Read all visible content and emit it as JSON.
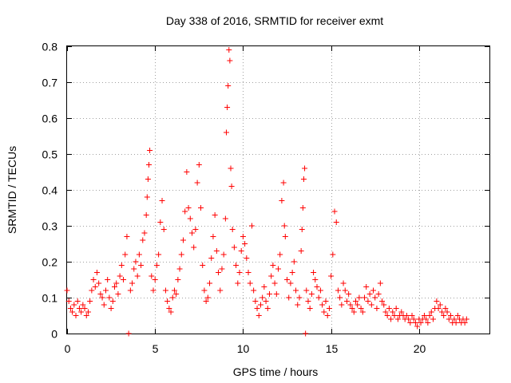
{
  "chart_data": {
    "type": "scatter",
    "title": "Day 338 of 2016, SRMTID for receiver exmt",
    "xlabel": "GPS time / hours",
    "ylabel": "SRMTID / TECUs",
    "xlim": [
      0,
      24
    ],
    "ylim": [
      0,
      0.8
    ],
    "xticks": [
      0,
      5,
      10,
      15,
      20
    ],
    "xtick_labels": [
      "0",
      "5",
      "10",
      "15",
      "20"
    ],
    "yticks": [
      0,
      0.1,
      0.2,
      0.3,
      0.4,
      0.5,
      0.6,
      0.7,
      0.8
    ],
    "ytick_labels": [
      "0",
      "0.1",
      "0.2",
      "0.3",
      "0.4",
      "0.5",
      "0.6",
      "0.7",
      "0.8"
    ],
    "grid": true,
    "marker": "+",
    "color": "#ff0000",
    "series": [
      {
        "name": "SRMTID",
        "points": [
          [
            0.0,
            0.12
          ],
          [
            0.1,
            0.09
          ],
          [
            0.2,
            0.07
          ],
          [
            0.3,
            0.06
          ],
          [
            0.4,
            0.08
          ],
          [
            0.5,
            0.05
          ],
          [
            0.6,
            0.09
          ],
          [
            0.7,
            0.07
          ],
          [
            0.8,
            0.06
          ],
          [
            0.9,
            0.08
          ],
          [
            1.0,
            0.07
          ],
          [
            1.1,
            0.05
          ],
          [
            1.2,
            0.06
          ],
          [
            1.3,
            0.09
          ],
          [
            1.4,
            0.12
          ],
          [
            1.5,
            0.15
          ],
          [
            1.6,
            0.13
          ],
          [
            1.7,
            0.17
          ],
          [
            1.8,
            0.14
          ],
          [
            1.9,
            0.11
          ],
          [
            2.0,
            0.1
          ],
          [
            2.1,
            0.08
          ],
          [
            2.2,
            0.12
          ],
          [
            2.3,
            0.15
          ],
          [
            2.4,
            0.1
          ],
          [
            2.5,
            0.07
          ],
          [
            2.6,
            0.09
          ],
          [
            2.7,
            0.13
          ],
          [
            2.8,
            0.14
          ],
          [
            2.9,
            0.11
          ],
          [
            3.0,
            0.16
          ],
          [
            3.1,
            0.19
          ],
          [
            3.2,
            0.15
          ],
          [
            3.3,
            0.22
          ],
          [
            3.4,
            0.27
          ],
          [
            3.5,
            0.0
          ],
          [
            3.6,
            0.12
          ],
          [
            3.7,
            0.14
          ],
          [
            3.8,
            0.18
          ],
          [
            3.9,
            0.2
          ],
          [
            4.0,
            0.16
          ],
          [
            4.1,
            0.22
          ],
          [
            4.2,
            0.19
          ],
          [
            4.3,
            0.26
          ],
          [
            4.4,
            0.28
          ],
          [
            4.5,
            0.33
          ],
          [
            4.55,
            0.38
          ],
          [
            4.6,
            0.43
          ],
          [
            4.65,
            0.47
          ],
          [
            4.7,
            0.51
          ],
          [
            4.8,
            0.16
          ],
          [
            4.9,
            0.12
          ],
          [
            5.0,
            0.15
          ],
          [
            5.1,
            0.19
          ],
          [
            5.2,
            0.22
          ],
          [
            5.3,
            0.31
          ],
          [
            5.4,
            0.37
          ],
          [
            5.5,
            0.29
          ],
          [
            5.6,
            0.12
          ],
          [
            5.7,
            0.09
          ],
          [
            5.8,
            0.07
          ],
          [
            5.9,
            0.06
          ],
          [
            6.0,
            0.1
          ],
          [
            6.1,
            0.12
          ],
          [
            6.2,
            0.11
          ],
          [
            6.3,
            0.15
          ],
          [
            6.4,
            0.18
          ],
          [
            6.5,
            0.22
          ],
          [
            6.6,
            0.26
          ],
          [
            6.7,
            0.34
          ],
          [
            6.8,
            0.45
          ],
          [
            6.9,
            0.35
          ],
          [
            7.0,
            0.32
          ],
          [
            7.1,
            0.28
          ],
          [
            7.2,
            0.24
          ],
          [
            7.3,
            0.29
          ],
          [
            7.4,
            0.42
          ],
          [
            7.5,
            0.47
          ],
          [
            7.6,
            0.35
          ],
          [
            7.7,
            0.19
          ],
          [
            7.8,
            0.12
          ],
          [
            7.9,
            0.09
          ],
          [
            8.0,
            0.1
          ],
          [
            8.1,
            0.14
          ],
          [
            8.2,
            0.21
          ],
          [
            8.3,
            0.27
          ],
          [
            8.4,
            0.33
          ],
          [
            8.5,
            0.23
          ],
          [
            8.6,
            0.17
          ],
          [
            8.7,
            0.12
          ],
          [
            8.8,
            0.18
          ],
          [
            8.9,
            0.22
          ],
          [
            9.0,
            0.32
          ],
          [
            9.05,
            0.56
          ],
          [
            9.1,
            0.63
          ],
          [
            9.15,
            0.69
          ],
          [
            9.2,
            0.79
          ],
          [
            9.25,
            0.76
          ],
          [
            9.3,
            0.46
          ],
          [
            9.35,
            0.41
          ],
          [
            9.4,
            0.29
          ],
          [
            9.5,
            0.24
          ],
          [
            9.6,
            0.19
          ],
          [
            9.7,
            0.14
          ],
          [
            9.8,
            0.17
          ],
          [
            9.9,
            0.23
          ],
          [
            10.0,
            0.27
          ],
          [
            10.1,
            0.25
          ],
          [
            10.2,
            0.21
          ],
          [
            10.3,
            0.17
          ],
          [
            10.4,
            0.14
          ],
          [
            10.5,
            0.3
          ],
          [
            10.6,
            0.12
          ],
          [
            10.7,
            0.09
          ],
          [
            10.8,
            0.07
          ],
          [
            10.9,
            0.05
          ],
          [
            11.0,
            0.08
          ],
          [
            11.1,
            0.1
          ],
          [
            11.2,
            0.13
          ],
          [
            11.3,
            0.09
          ],
          [
            11.4,
            0.07
          ],
          [
            11.5,
            0.11
          ],
          [
            11.6,
            0.16
          ],
          [
            11.7,
            0.19
          ],
          [
            11.8,
            0.14
          ],
          [
            11.9,
            0.11
          ],
          [
            12.0,
            0.18
          ],
          [
            12.1,
            0.22
          ],
          [
            12.2,
            0.37
          ],
          [
            12.3,
            0.42
          ],
          [
            12.35,
            0.3
          ],
          [
            12.4,
            0.27
          ],
          [
            12.5,
            0.15
          ],
          [
            12.6,
            0.1
          ],
          [
            12.7,
            0.14
          ],
          [
            12.8,
            0.17
          ],
          [
            12.9,
            0.2
          ],
          [
            13.0,
            0.12
          ],
          [
            13.1,
            0.08
          ],
          [
            13.2,
            0.1
          ],
          [
            13.3,
            0.23
          ],
          [
            13.35,
            0.29
          ],
          [
            13.4,
            0.35
          ],
          [
            13.45,
            0.43
          ],
          [
            13.5,
            0.46
          ],
          [
            13.55,
            0.0
          ],
          [
            13.6,
            0.12
          ],
          [
            13.7,
            0.09
          ],
          [
            13.8,
            0.07
          ],
          [
            13.9,
            0.11
          ],
          [
            14.0,
            0.17
          ],
          [
            14.1,
            0.15
          ],
          [
            14.2,
            0.13
          ],
          [
            14.3,
            0.1
          ],
          [
            14.4,
            0.12
          ],
          [
            14.5,
            0.08
          ],
          [
            14.6,
            0.06
          ],
          [
            14.7,
            0.09
          ],
          [
            14.8,
            0.05
          ],
          [
            14.9,
            0.07
          ],
          [
            15.0,
            0.16
          ],
          [
            15.1,
            0.22
          ],
          [
            15.2,
            0.34
          ],
          [
            15.3,
            0.31
          ],
          [
            15.4,
            0.12
          ],
          [
            15.5,
            0.1
          ],
          [
            15.6,
            0.08
          ],
          [
            15.7,
            0.14
          ],
          [
            15.8,
            0.12
          ],
          [
            15.9,
            0.09
          ],
          [
            16.0,
            0.11
          ],
          [
            16.1,
            0.08
          ],
          [
            16.2,
            0.07
          ],
          [
            16.3,
            0.06
          ],
          [
            16.4,
            0.09
          ],
          [
            16.5,
            0.08
          ],
          [
            16.6,
            0.1
          ],
          [
            16.7,
            0.07
          ],
          [
            16.8,
            0.06
          ],
          [
            16.9,
            0.1
          ],
          [
            17.0,
            0.13
          ],
          [
            17.1,
            0.09
          ],
          [
            17.2,
            0.11
          ],
          [
            17.3,
            0.08
          ],
          [
            17.4,
            0.12
          ],
          [
            17.5,
            0.1
          ],
          [
            17.6,
            0.07
          ],
          [
            17.7,
            0.11
          ],
          [
            17.8,
            0.14
          ],
          [
            17.9,
            0.09
          ],
          [
            18.0,
            0.08
          ],
          [
            18.1,
            0.06
          ],
          [
            18.2,
            0.05
          ],
          [
            18.3,
            0.07
          ],
          [
            18.4,
            0.04
          ],
          [
            18.5,
            0.06
          ],
          [
            18.6,
            0.05
          ],
          [
            18.7,
            0.07
          ],
          [
            18.8,
            0.04
          ],
          [
            18.9,
            0.05
          ],
          [
            19.0,
            0.06
          ],
          [
            19.1,
            0.05
          ],
          [
            19.2,
            0.04
          ],
          [
            19.3,
            0.05
          ],
          [
            19.4,
            0.04
          ],
          [
            19.5,
            0.03
          ],
          [
            19.6,
            0.05
          ],
          [
            19.7,
            0.04
          ],
          [
            19.8,
            0.03
          ],
          [
            19.9,
            0.02
          ],
          [
            20.0,
            0.04
          ],
          [
            20.1,
            0.03
          ],
          [
            20.2,
            0.04
          ],
          [
            20.3,
            0.05
          ],
          [
            20.4,
            0.04
          ],
          [
            20.5,
            0.03
          ],
          [
            20.6,
            0.05
          ],
          [
            20.7,
            0.06
          ],
          [
            20.8,
            0.04
          ],
          [
            20.9,
            0.07
          ],
          [
            21.0,
            0.09
          ],
          [
            21.1,
            0.07
          ],
          [
            21.2,
            0.08
          ],
          [
            21.3,
            0.06
          ],
          [
            21.4,
            0.05
          ],
          [
            21.5,
            0.07
          ],
          [
            21.6,
            0.06
          ],
          [
            21.7,
            0.04
          ],
          [
            21.8,
            0.05
          ],
          [
            21.9,
            0.03
          ],
          [
            22.0,
            0.04
          ],
          [
            22.1,
            0.03
          ],
          [
            22.2,
            0.05
          ],
          [
            22.3,
            0.04
          ],
          [
            22.4,
            0.03
          ],
          [
            22.5,
            0.04
          ],
          [
            22.6,
            0.03
          ],
          [
            22.7,
            0.04
          ]
        ]
      }
    ]
  }
}
